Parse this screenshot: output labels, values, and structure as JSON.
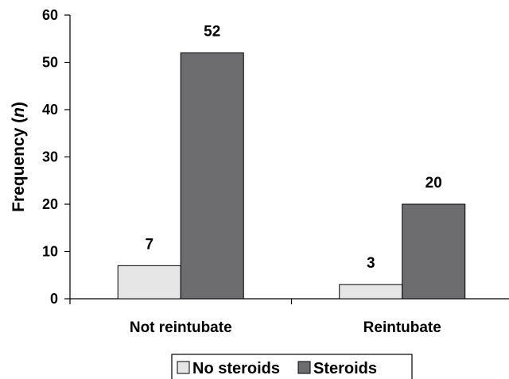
{
  "chart_data": {
    "type": "bar",
    "categories": [
      "Not reintubate",
      "Reintubate"
    ],
    "series": [
      {
        "name": "No steroids",
        "values": [
          7,
          3
        ],
        "color": "#e6e6e6"
      },
      {
        "name": "Steroids",
        "values": [
          52,
          20
        ],
        "color": "#6d6d6f"
      }
    ],
    "ylabel": "Frequency",
    "ylabel_italic_suffix": "n",
    "ylim": [
      0,
      60
    ],
    "yticks": [
      0,
      10,
      20,
      30,
      40,
      50,
      60
    ],
    "ytick_labels": [
      "0",
      "10",
      "20",
      "30",
      "40",
      "50",
      "60"
    ],
    "data_labels": [
      [
        "7",
        "3"
      ],
      [
        "52",
        "20"
      ]
    ],
    "grid": false,
    "legend_position": "bottom-right"
  }
}
